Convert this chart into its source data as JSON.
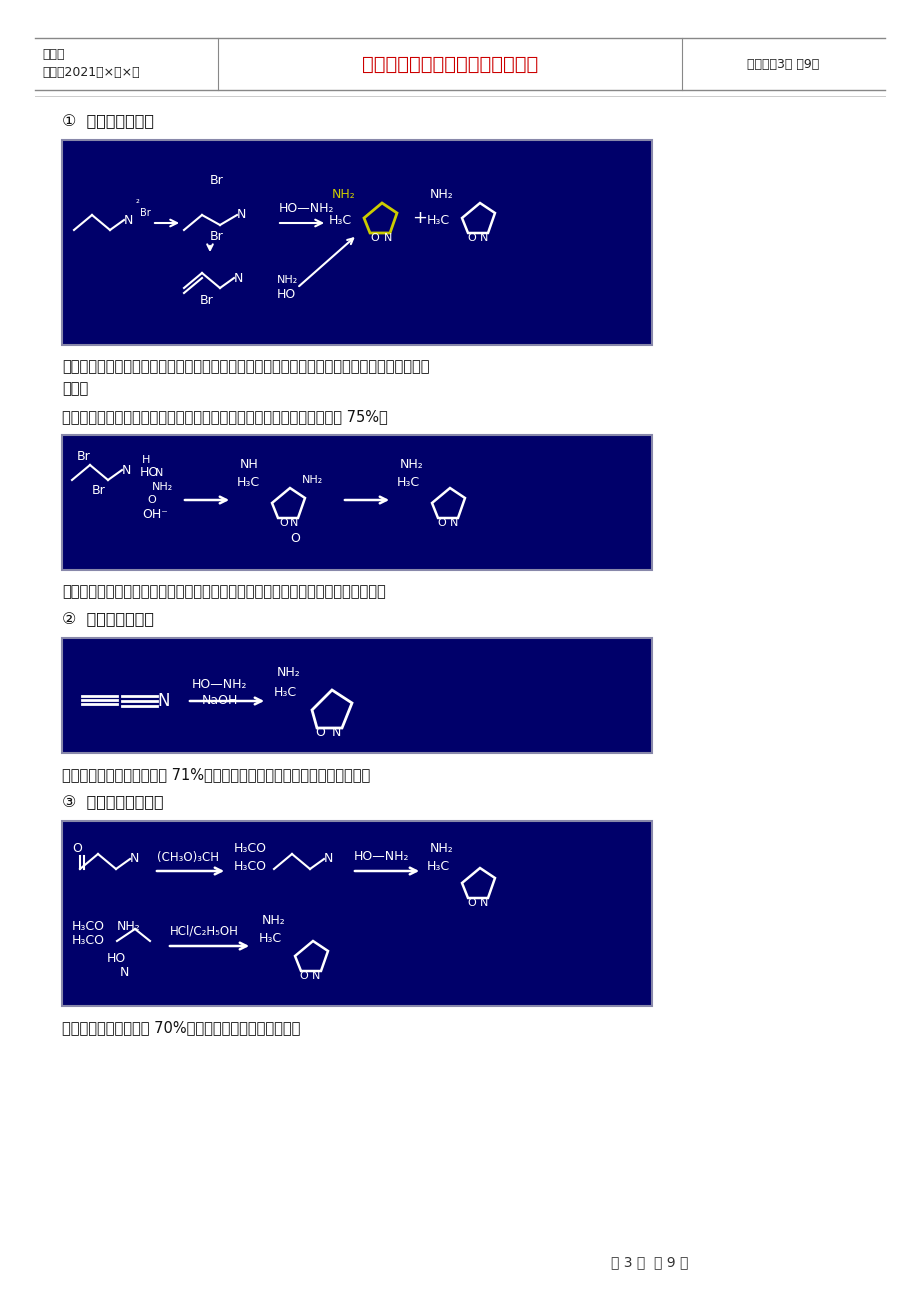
{
  "page_bg": "#ffffff",
  "header": {
    "left_line1": "编号：",
    "left_line2": "时间：2021年×月×日",
    "center_text": "书山有路勤为径，学海无涯苦作舟",
    "center_color": "#cc0000",
    "right_text": "页码：第3页 共9页",
    "border_color": "#888888"
  },
  "footer_text": "第 3 页  共 9 页",
  "body_color": "#111111",
  "img_bg": "#00006A",
  "img_border": "#8888aa",
  "white": "#ffffff",
  "yellow": "#cccc00",
  "para1a": "就羟胺而言，尽管氨基氮的亲核能力比羟基氧强，但在此反应中，这种差异还不足以使选择性足",
  "para1b": "够好。",
  "para2": "在碱性条件下，使用羟胺的酰基衍生物，比如羟基脲，可以使收率提高到 75%。",
  "para3": "此法路线较短，收率较高，但羟基脲的价格较高，使得这条路线实用意义不是很大。",
  "para4": "此法路线短，收率可以达到 71%，但丁炔腈难得、价高，限制了它的应用。",
  "para5": "此法综合收率可以达到 70%左右，但存在原料供应问题。",
  "sec1": "①  以丁烯腈为原料",
  "sec2": "②  以丁炔腈为原料",
  "sec3": "③  以乙酰乙腈为原料"
}
